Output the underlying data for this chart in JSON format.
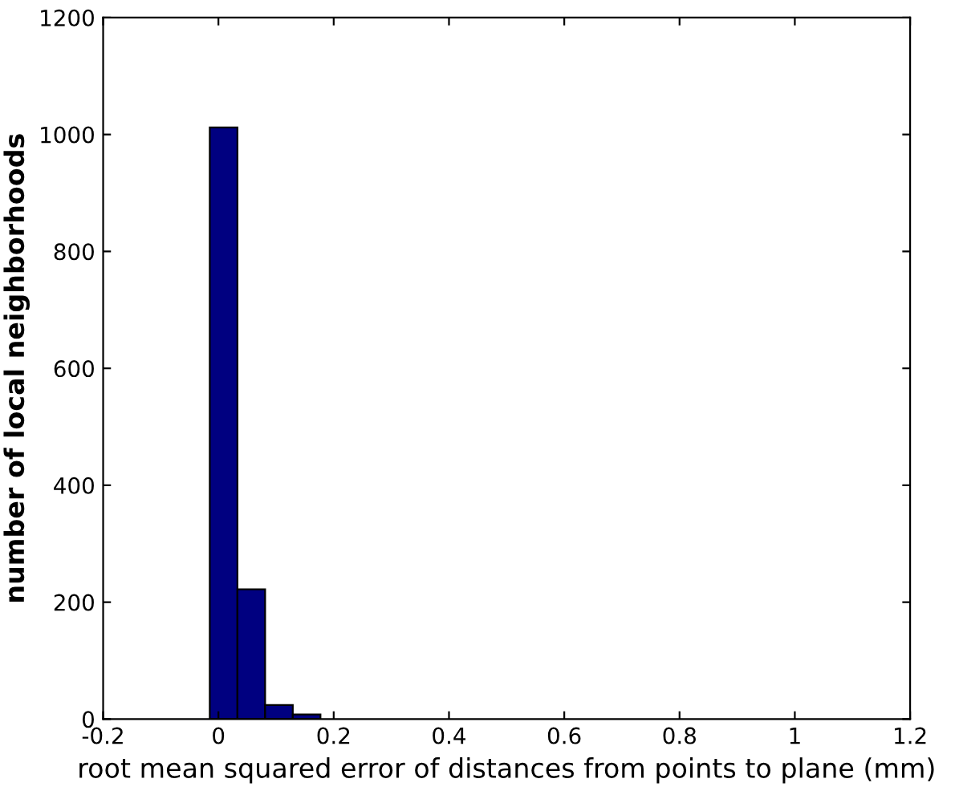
{
  "chart_data": {
    "type": "histogram",
    "xlabel": "root mean squared error of distances from points to plane (mm)",
    "ylabel": "number of local neighborhoods",
    "bins": [
      -0.015,
      0.033,
      0.081,
      0.129,
      0.177
    ],
    "values": [
      1012,
      222,
      24,
      8
    ],
    "color": "#000080",
    "xlim": [
      -0.2,
      1.2
    ],
    "xticks": [
      -0.2,
      0,
      0.2,
      0.4,
      0.6,
      0.8,
      1,
      1.2
    ],
    "ylim": [
      0,
      1200
    ],
    "yticks": [
      0,
      200,
      400,
      600,
      800,
      1000,
      1200
    ],
    "grid": false
  }
}
